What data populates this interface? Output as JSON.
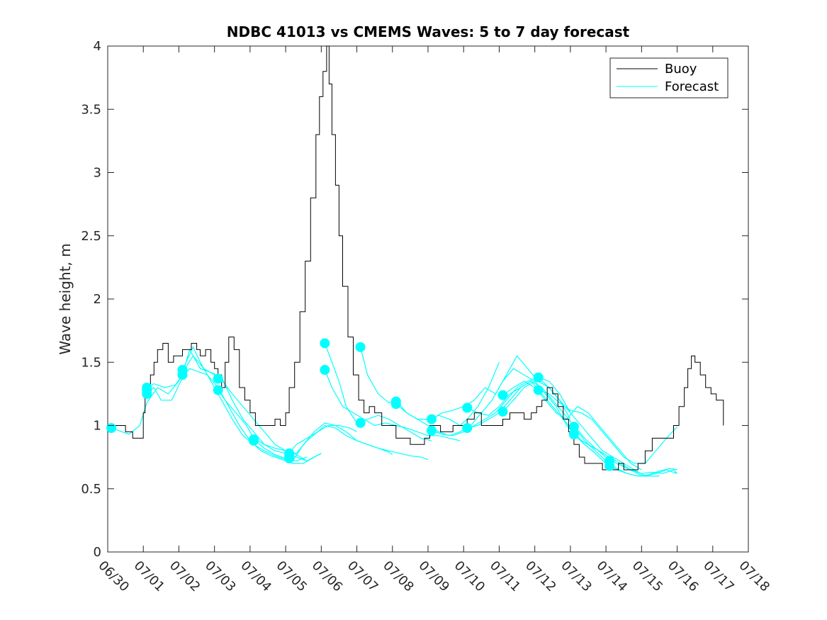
{
  "chart_data": {
    "type": "line",
    "title": "NDBC 41013 vs CMEMS Waves: 5 to 7 day forecast",
    "xlabel": "",
    "ylabel": "Wave height, m",
    "x_ticks": [
      "06/30",
      "07/01",
      "07/02",
      "07/03",
      "07/04",
      "07/05",
      "07/06",
      "07/07",
      "07/08",
      "07/09",
      "07/10",
      "07/11",
      "07/12",
      "07/13",
      "07/14",
      "07/15",
      "07/16",
      "07/17",
      "07/18"
    ],
    "x_range_days": [
      0,
      18
    ],
    "ylim": [
      0,
      4
    ],
    "y_ticks": [
      "0",
      "0.5",
      "1",
      "1.5",
      "2",
      "2.5",
      "3",
      "3.5",
      "4"
    ],
    "legend_position": "top-right",
    "colors": {
      "buoy": "#000000",
      "forecast": "#00ffff"
    },
    "series": [
      {
        "name": "Buoy",
        "x_days": [
          0,
          0.1,
          0.2,
          0.3,
          0.5,
          0.7,
          0.85,
          1.0,
          1.05,
          1.2,
          1.3,
          1.4,
          1.55,
          1.7,
          1.85,
          2.0,
          2.1,
          2.25,
          2.35,
          2.5,
          2.6,
          2.75,
          2.9,
          3.0,
          3.1,
          3.2,
          3.3,
          3.4,
          3.55,
          3.7,
          3.85,
          4.0,
          4.15,
          4.3,
          4.5,
          4.7,
          4.85,
          5.0,
          5.1,
          5.25,
          5.4,
          5.55,
          5.7,
          5.85,
          5.95,
          6.05,
          6.15,
          6.22,
          6.3,
          6.4,
          6.5,
          6.6,
          6.75,
          6.9,
          7.05,
          7.2,
          7.35,
          7.5,
          7.7,
          7.9,
          8.1,
          8.3,
          8.5,
          8.7,
          8.9,
          9.05,
          9.2,
          9.35,
          9.5,
          9.7,
          9.9,
          10.1,
          10.3,
          10.5,
          10.7,
          10.9,
          11.1,
          11.3,
          11.5,
          11.7,
          11.9,
          12.05,
          12.2,
          12.35,
          12.5,
          12.65,
          12.8,
          12.95,
          13.1,
          13.25,
          13.4,
          13.55,
          13.7,
          13.9,
          14.05,
          14.2,
          14.35,
          14.5,
          14.7,
          14.9,
          15.1,
          15.3,
          15.5,
          15.7,
          15.9,
          16.05,
          16.2,
          16.3,
          16.4,
          16.5,
          16.65,
          16.8,
          16.95,
          17.1,
          17.3
        ],
        "values": [
          0.95,
          1.0,
          1.0,
          1.0,
          0.95,
          0.9,
          0.9,
          1.1,
          1.3,
          1.4,
          1.5,
          1.6,
          1.65,
          1.5,
          1.55,
          1.55,
          1.6,
          1.6,
          1.65,
          1.6,
          1.55,
          1.6,
          1.5,
          1.45,
          1.4,
          1.3,
          1.5,
          1.7,
          1.6,
          1.3,
          1.2,
          1.1,
          1.0,
          1.0,
          1.0,
          1.05,
          1.0,
          1.1,
          1.3,
          1.5,
          1.9,
          2.3,
          2.8,
          3.3,
          3.6,
          3.8,
          4.0,
          3.7,
          3.3,
          2.9,
          2.5,
          2.1,
          1.7,
          1.4,
          1.2,
          1.1,
          1.15,
          1.1,
          1.0,
          1.0,
          0.9,
          0.9,
          0.85,
          0.85,
          0.9,
          1.0,
          1.0,
          0.95,
          0.95,
          1.0,
          1.0,
          1.05,
          1.1,
          1.0,
          1.0,
          1.0,
          1.05,
          1.1,
          1.1,
          1.05,
          1.1,
          1.15,
          1.2,
          1.3,
          1.25,
          1.15,
          1.05,
          0.95,
          0.85,
          0.75,
          0.7,
          0.7,
          0.7,
          0.65,
          0.65,
          0.65,
          0.7,
          0.65,
          0.65,
          0.7,
          0.8,
          0.9,
          0.9,
          0.9,
          1.0,
          1.15,
          1.3,
          1.45,
          1.55,
          1.5,
          1.4,
          1.3,
          1.25,
          1.2,
          1.0
        ]
      },
      {
        "name": "Forecast",
        "segments": [
          {
            "x": [
              0.1,
              0.3,
              0.6,
              0.9,
              1.1,
              1.4,
              1.7,
              2.0,
              2.2,
              2.4,
              2.6,
              2.9,
              3.2,
              3.5,
              3.8,
              4.1,
              4.4,
              4.7,
              5.0,
              5.3,
              5.6
            ],
            "y": [
              0.98,
              0.96,
              0.93,
              1.0,
              1.18,
              1.3,
              1.25,
              1.35,
              1.5,
              1.62,
              1.5,
              1.35,
              1.2,
              1.05,
              0.92,
              0.85,
              0.8,
              0.76,
              0.73,
              0.72,
              0.75
            ]
          },
          {
            "x": [
              1.1,
              1.3,
              1.6,
              1.9,
              2.1,
              2.3,
              2.6,
              2.9,
              3.2,
              3.5,
              3.8,
              4.1,
              4.4,
              4.7,
              5.0,
              5.3,
              5.6,
              6.0
            ],
            "y": [
              1.3,
              1.33,
              1.3,
              1.32,
              1.4,
              1.6,
              1.45,
              1.42,
              1.38,
              1.2,
              1.05,
              0.95,
              0.85,
              0.8,
              0.78,
              0.75,
              0.72,
              0.78
            ]
          },
          {
            "x": [
              1.1,
              1.3,
              1.5,
              1.8,
              2.1,
              2.3,
              2.5,
              2.8,
              3.1,
              3.4,
              3.7,
              4.0,
              4.3,
              4.6,
              4.9,
              5.2,
              5.5,
              5.8
            ],
            "y": [
              1.25,
              1.3,
              1.2,
              1.2,
              1.38,
              1.45,
              1.43,
              1.4,
              1.3,
              1.15,
              1.0,
              0.88,
              0.8,
              0.76,
              0.73,
              0.7,
              0.7,
              0.75
            ]
          },
          {
            "x": [
              2.1,
              2.4,
              2.7,
              3.0,
              3.2,
              3.5,
              3.8,
              4.1,
              4.4,
              4.7,
              5.0,
              5.3,
              5.6,
              6.0
            ],
            "y": [
              1.42,
              1.55,
              1.45,
              1.4,
              1.36,
              1.25,
              1.15,
              1.05,
              0.95,
              0.85,
              0.8,
              0.77,
              0.72,
              0.78
            ]
          },
          {
            "x": [
              3.1,
              3.3,
              3.6,
              3.9,
              4.1,
              4.4,
              4.7,
              5.0,
              5.3,
              5.6,
              5.9,
              6.2,
              6.5,
              6.8,
              7.0
            ],
            "y": [
              1.28,
              1.2,
              1.1,
              1.0,
              0.9,
              0.85,
              0.82,
              0.8,
              0.78,
              0.88,
              0.95,
              1.0,
              1.0,
              0.98,
              0.95
            ]
          },
          {
            "x": [
              4.1,
              4.4,
              4.7,
              5.0,
              5.2,
              5.5,
              5.8,
              6.1,
              6.4,
              6.7,
              7.0,
              7.3,
              7.6,
              7.9,
              8.2,
              8.5,
              8.8,
              9.0
            ],
            "y": [
              0.89,
              0.82,
              0.77,
              0.74,
              0.72,
              0.85,
              0.95,
              1.02,
              1.0,
              0.95,
              0.88,
              0.85,
              0.82,
              0.8,
              0.78,
              0.76,
              0.75,
              0.73
            ]
          },
          {
            "x": [
              5.1,
              5.3,
              5.6,
              5.9,
              6.1,
              6.4,
              6.7,
              7.0,
              7.3,
              7.6,
              7.9,
              8.0
            ],
            "y": [
              0.78,
              0.85,
              0.9,
              0.95,
              1.0,
              0.98,
              0.92,
              0.88,
              0.85,
              0.82,
              0.79,
              0.77
            ]
          },
          {
            "x": [
              6.1,
              6.3,
              6.5,
              6.7,
              7.0,
              7.3,
              7.6,
              7.9,
              8.2,
              8.5,
              8.8,
              9.1
            ],
            "y": [
              1.65,
              1.5,
              1.35,
              1.15,
              1.02,
              1.05,
              1.08,
              1.05,
              1.0,
              0.95,
              0.9,
              0.88
            ]
          },
          {
            "x": [
              6.1,
              6.3,
              6.6,
              6.9,
              7.2,
              7.5,
              7.8,
              8.1,
              8.4,
              8.7,
              9.0,
              9.3,
              9.6,
              9.9
            ],
            "y": [
              1.44,
              1.3,
              1.15,
              1.1,
              1.05,
              1.0,
              1.02,
              1.0,
              0.98,
              0.95,
              0.92,
              0.92,
              0.9,
              0.88
            ]
          },
          {
            "x": [
              7.1,
              7.3,
              7.6,
              7.9,
              8.1,
              8.4,
              8.7,
              9.0,
              9.3,
              9.6,
              9.9,
              10.1,
              10.4,
              10.7,
              11.0
            ],
            "y": [
              1.62,
              1.4,
              1.25,
              1.18,
              1.2,
              1.1,
              1.05,
              1.05,
              1.08,
              1.05,
              1.0,
              1.05,
              1.15,
              1.3,
              1.5
            ]
          },
          {
            "x": [
              8.1,
              8.4,
              8.7,
              9.0,
              9.3,
              9.6,
              9.9,
              10.2,
              10.5,
              10.8,
              11.1,
              11.4,
              11.7,
              12.0
            ],
            "y": [
              1.17,
              1.1,
              1.05,
              1.0,
              0.95,
              0.92,
              0.95,
              1.0,
              1.1,
              1.2,
              1.35,
              1.45,
              1.4,
              1.35
            ]
          },
          {
            "x": [
              9.1,
              9.4,
              9.7,
              10.0,
              10.3,
              10.6,
              10.9,
              11.2,
              11.5,
              11.8,
              12.1,
              12.4,
              12.7,
              13.0
            ],
            "y": [
              1.05,
              1.1,
              1.12,
              1.15,
              1.2,
              1.3,
              1.25,
              1.4,
              1.55,
              1.45,
              1.35,
              1.3,
              1.2,
              1.05
            ]
          },
          {
            "x": [
              9.1,
              9.4,
              9.7,
              10.0,
              10.3,
              10.6,
              10.9,
              11.2,
              11.5,
              11.8,
              12.1,
              12.4,
              12.7,
              13.0
            ],
            "y": [
              0.96,
              0.93,
              0.92,
              0.95,
              1.0,
              1.05,
              1.1,
              1.2,
              1.3,
              1.35,
              1.38,
              1.35,
              1.25,
              1.1
            ]
          },
          {
            "x": [
              10.1,
              10.4,
              10.7,
              11.0,
              11.3,
              11.6,
              11.9,
              12.2,
              12.5,
              12.8,
              13.1,
              13.4,
              13.7,
              14.0
            ],
            "y": [
              0.98,
              1.0,
              1.05,
              1.1,
              1.2,
              1.3,
              1.35,
              1.25,
              1.15,
              1.05,
              0.95,
              0.85,
              0.78,
              0.7
            ]
          },
          {
            "x": [
              10.1,
              10.4,
              10.7,
              11.0,
              11.3,
              11.6,
              11.9,
              12.2,
              12.5,
              12.8,
              13.1,
              13.4,
              13.7,
              14.0,
              14.3,
              14.6,
              14.9,
              15.0
            ],
            "y": [
              1.14,
              1.1,
              1.08,
              1.15,
              1.25,
              1.3,
              1.35,
              1.3,
              1.2,
              1.1,
              1.0,
              0.9,
              0.82,
              0.75,
              0.7,
              0.66,
              0.62,
              0.6
            ]
          },
          {
            "x": [
              11.1,
              11.4,
              11.7,
              12.0,
              12.3,
              12.6,
              12.9,
              13.2,
              13.5,
              13.8,
              14.1,
              14.4,
              14.7,
              15.0,
              15.3,
              15.6,
              15.9,
              16.0
            ],
            "y": [
              1.11,
              1.2,
              1.3,
              1.35,
              1.25,
              1.15,
              1.0,
              0.9,
              0.85,
              0.8,
              0.75,
              0.7,
              0.65,
              0.62,
              0.63,
              0.62,
              0.65,
              0.62
            ]
          },
          {
            "x": [
              11.1,
              11.4,
              11.7,
              12.0,
              12.3,
              12.6,
              12.9,
              13.2,
              13.5,
              13.8,
              14.1,
              14.4,
              14.7,
              15.0
            ],
            "y": [
              1.24,
              1.3,
              1.35,
              1.3,
              1.2,
              1.1,
              1.05,
              1.15,
              1.1,
              1.0,
              0.9,
              0.8,
              0.7,
              0.65
            ]
          },
          {
            "x": [
              12.1,
              12.4,
              12.7,
              13.0,
              13.3,
              13.6,
              13.9,
              14.2,
              14.5,
              14.8,
              15.1,
              15.4,
              15.7,
              16.0
            ],
            "y": [
              1.38,
              1.3,
              1.2,
              1.1,
              1.0,
              0.9,
              0.8,
              0.75,
              0.7,
              0.65,
              0.6,
              0.62,
              0.65,
              0.62
            ]
          },
          {
            "x": [
              12.1,
              12.4,
              12.7,
              13.0,
              13.3,
              13.6,
              13.9,
              14.2,
              14.5,
              14.8,
              15.1,
              15.4,
              15.7,
              16.0
            ],
            "y": [
              1.28,
              1.25,
              1.18,
              1.12,
              1.1,
              1.05,
              0.95,
              0.85,
              0.75,
              0.7,
              0.7,
              0.8,
              0.9,
              0.99
            ]
          },
          {
            "x": [
              13.1,
              13.4,
              13.7,
              14.0,
              14.3,
              14.6,
              14.9,
              15.2,
              15.5,
              15.8,
              16.0
            ],
            "y": [
              0.99,
              0.88,
              0.8,
              0.72,
              0.66,
              0.62,
              0.6,
              0.61,
              0.64,
              0.66,
              0.65
            ]
          },
          {
            "x": [
              13.1,
              13.4,
              13.7,
              14.0,
              14.3,
              14.6,
              14.9,
              15.2,
              15.5
            ],
            "y": [
              0.93,
              0.85,
              0.78,
              0.7,
              0.65,
              0.62,
              0.6,
              0.6,
              0.6
            ]
          }
        ],
        "markers_x": [
          0.1,
          1.1,
          1.1,
          1.1,
          2.1,
          2.1,
          3.1,
          3.1,
          4.1,
          4.1,
          5.1,
          5.1,
          5.1,
          6.1,
          6.1,
          7.1,
          7.1,
          8.1,
          8.1,
          9.1,
          9.1,
          10.1,
          10.1,
          11.1,
          11.1,
          12.1,
          12.1,
          13.1,
          13.1,
          14.1,
          14.1
        ],
        "markers_y": [
          0.98,
          1.3,
          1.25,
          1.28,
          1.44,
          1.4,
          1.37,
          1.28,
          0.89,
          0.88,
          0.78,
          0.74,
          0.76,
          1.65,
          1.44,
          1.62,
          1.02,
          1.19,
          1.17,
          1.05,
          0.96,
          1.14,
          0.98,
          1.24,
          1.11,
          1.38,
          1.28,
          0.99,
          0.93,
          0.72,
          0.68
        ]
      }
    ]
  }
}
